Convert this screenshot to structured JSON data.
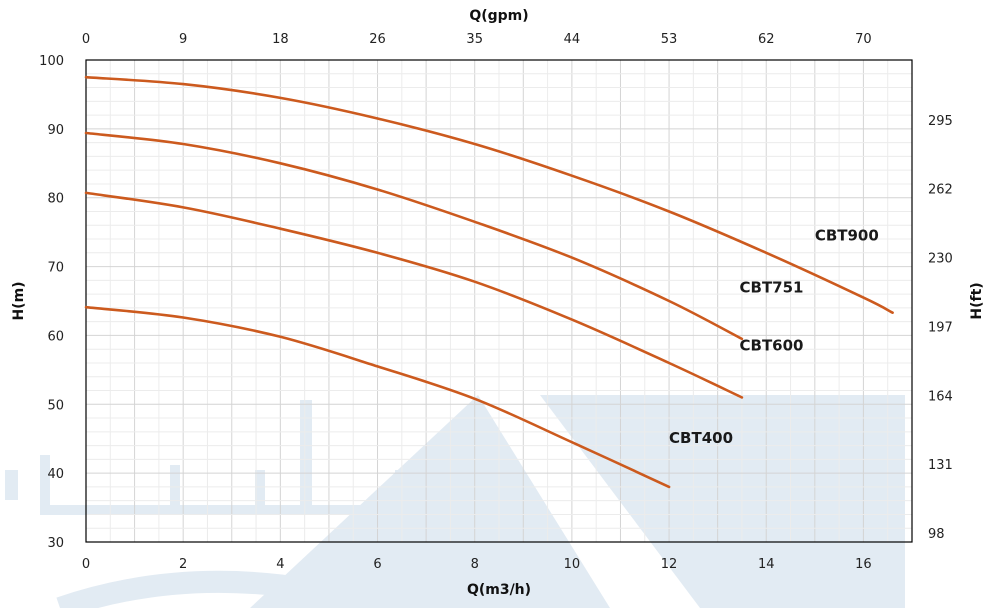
{
  "chart_data": {
    "type": "line",
    "title": "",
    "xlabel": "Q(m3/h)",
    "ylabel": "H(m)",
    "x2label": "Q(gpm)",
    "y2label": "H(ft)",
    "xlim": [
      0,
      17
    ],
    "ylim": [
      30,
      100
    ],
    "grid": true,
    "x_ticks": [
      0,
      2,
      4,
      6,
      8,
      10,
      12,
      14,
      16
    ],
    "y_ticks": [
      30,
      40,
      50,
      60,
      70,
      80,
      90,
      100
    ],
    "x2_ticks": [
      {
        "label": "0",
        "at": 0
      },
      {
        "label": "9",
        "at": 2
      },
      {
        "label": "18",
        "at": 4
      },
      {
        "label": "26",
        "at": 6
      },
      {
        "label": "35",
        "at": 8
      },
      {
        "label": "44",
        "at": 10
      },
      {
        "label": "53",
        "at": 12
      },
      {
        "label": "62",
        "at": 14
      },
      {
        "label": "70",
        "at": 16
      }
    ],
    "y2_ticks": [
      {
        "label": "98",
        "at": 30
      },
      {
        "label": "131",
        "at": 40
      },
      {
        "label": "164",
        "at": 50
      },
      {
        "label": "197",
        "at": 60
      },
      {
        "label": "230",
        "at": 70
      },
      {
        "label": "262",
        "at": 80
      },
      {
        "label": "295",
        "at": 90
      }
    ],
    "series": [
      {
        "name": "CBT900",
        "label_at": [
          15.0,
          73.8
        ],
        "x": [
          0,
          2,
          4,
          6,
          8,
          10,
          12,
          14,
          16,
          16.6
        ],
        "y": [
          97.5,
          96.5,
          94.5,
          91.5,
          87.8,
          83.2,
          78.0,
          72.0,
          65.5,
          63.3
        ]
      },
      {
        "name": "CBT751",
        "label_at": [
          13.45,
          66.2
        ],
        "x": [
          0,
          2,
          4,
          6,
          8,
          10,
          12,
          13.5
        ],
        "y": [
          89.4,
          87.8,
          85.0,
          81.2,
          76.5,
          71.3,
          65.0,
          59.5
        ]
      },
      {
        "name": "CBT600",
        "label_at": [
          13.45,
          57.8
        ],
        "x": [
          0,
          2,
          4,
          6,
          8,
          10,
          12,
          13.5
        ],
        "y": [
          80.7,
          78.6,
          75.5,
          72.0,
          67.8,
          62.3,
          56.0,
          51.0
        ]
      },
      {
        "name": "CBT400",
        "label_at": [
          12.0,
          44.4
        ],
        "x": [
          0,
          2,
          4,
          6,
          8,
          10,
          12
        ],
        "y": [
          64.1,
          62.6,
          59.8,
          55.5,
          50.8,
          44.5,
          38.0
        ]
      }
    ]
  },
  "colors": {
    "curve": "#cc5a1e",
    "watermark": "#e2ebf3"
  }
}
